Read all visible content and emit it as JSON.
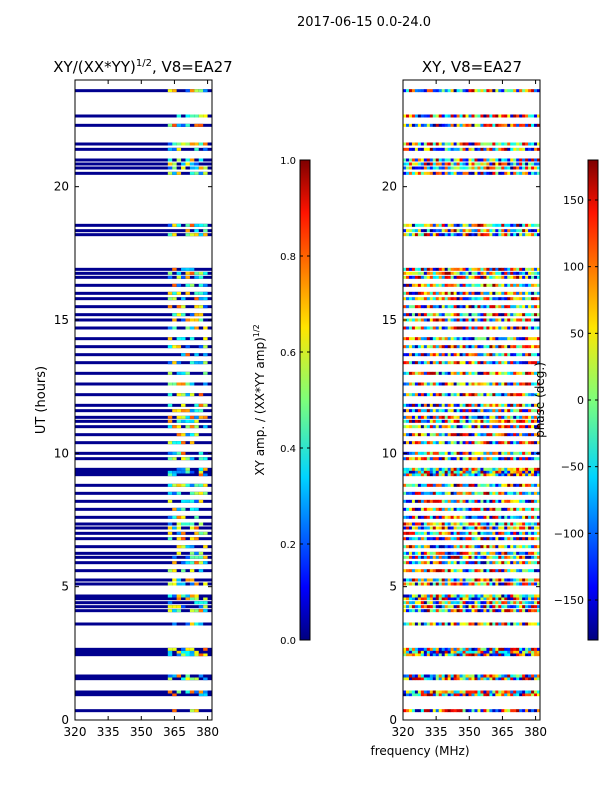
{
  "figure": {
    "suptitle": "2017-06-15 0.0-24.0",
    "xlabel_shared": "frequency (MHz)"
  },
  "colors": {
    "dark_blue": "#00008f",
    "axis": "#000000",
    "background": "#ffffff"
  },
  "chart_data": [
    {
      "type": "heatmap",
      "title": "XY/(XX*YY)",
      "title_sup": "1/2",
      "title_suffix": ", V8=EA27",
      "xlabel": "",
      "ylabel": "UT (hours)",
      "xlim": [
        320,
        382
      ],
      "ylim": [
        0,
        24
      ],
      "xticks": [
        "320",
        "335",
        "350",
        "365",
        "380"
      ],
      "xtick_values": [
        320,
        335,
        350,
        365,
        380
      ],
      "yticks": [
        "0",
        "5",
        "10",
        "15",
        "20"
      ],
      "ytick_values": [
        0,
        5,
        10,
        15,
        20
      ],
      "cmap": "jet",
      "colorbar": {
        "label": "XY amp. / (XX*YY amp)",
        "label_sup": "1/2",
        "vmin": 0.0,
        "vmax": 1.0,
        "ticks": [
          "0.0",
          "0.2",
          "0.4",
          "0.6",
          "0.8",
          "1.0"
        ],
        "tick_values": [
          0.0,
          0.2,
          0.4,
          0.6,
          0.8,
          1.0
        ]
      },
      "valid_times_hours": [
        0.35,
        0.95,
        1.05,
        1.55,
        1.65,
        2.45,
        2.55,
        2.65,
        3.6,
        4.1,
        4.25,
        4.4,
        4.55,
        4.65,
        5.1,
        5.25,
        5.6,
        5.9,
        6.1,
        6.25,
        6.5,
        6.8,
        7.0,
        7.2,
        7.35,
        7.6,
        7.9,
        8.2,
        8.5,
        8.8,
        9.2,
        9.3,
        9.4,
        9.8,
        10.0,
        10.4,
        10.7,
        11.0,
        11.2,
        11.35,
        11.6,
        11.8,
        12.2,
        12.6,
        13.0,
        13.4,
        13.7,
        14.0,
        14.3,
        14.7,
        15.0,
        15.2,
        15.5,
        15.8,
        16.0,
        16.3,
        16.6,
        16.75,
        16.9,
        18.2,
        18.35,
        18.55,
        20.5,
        20.7,
        20.85,
        21.0,
        21.4,
        21.6,
        22.3,
        22.65,
        23.6
      ],
      "band_freq_range": [
        362,
        380
      ],
      "band_value_range": [
        0.2,
        0.8
      ],
      "base_value": 0.0
    },
    {
      "type": "heatmap",
      "title": "XY, V8=EA27",
      "xlabel": "",
      "ylabel": "",
      "xlim": [
        320,
        382
      ],
      "ylim": [
        0,
        24
      ],
      "xticks": [
        "320",
        "335",
        "350",
        "365",
        "380"
      ],
      "xtick_values": [
        320,
        335,
        350,
        365,
        380
      ],
      "yticks": [
        "0",
        "5",
        "10",
        "15",
        "20"
      ],
      "ytick_values": [
        0,
        5,
        10,
        15,
        20
      ],
      "cmap": "jet",
      "colorbar": {
        "label": "phase (deg.)",
        "vmin": -180,
        "vmax": 180,
        "ticks": [
          "−150",
          "−100",
          "−50",
          "0",
          "50",
          "100",
          "150"
        ],
        "tick_values": [
          -150,
          -100,
          -50,
          0,
          50,
          100,
          150
        ]
      },
      "valid_times_hours": [
        0.35,
        0.95,
        1.05,
        1.55,
        1.65,
        2.45,
        2.55,
        2.65,
        3.6,
        4.1,
        4.25,
        4.4,
        4.55,
        4.65,
        5.1,
        5.25,
        5.6,
        5.9,
        6.1,
        6.25,
        6.5,
        6.8,
        7.0,
        7.2,
        7.35,
        7.6,
        7.9,
        8.2,
        8.5,
        8.8,
        9.2,
        9.3,
        9.4,
        9.8,
        10.0,
        10.4,
        10.7,
        11.0,
        11.2,
        11.35,
        11.6,
        11.8,
        12.2,
        12.6,
        13.0,
        13.4,
        13.7,
        14.0,
        14.3,
        14.7,
        15.0,
        15.2,
        15.5,
        15.8,
        16.0,
        16.3,
        16.6,
        16.75,
        16.9,
        18.2,
        18.35,
        18.55,
        20.5,
        20.7,
        20.85,
        21.0,
        21.4,
        21.6,
        22.3,
        22.65,
        23.6
      ],
      "value_range": [
        -180,
        180
      ]
    }
  ]
}
